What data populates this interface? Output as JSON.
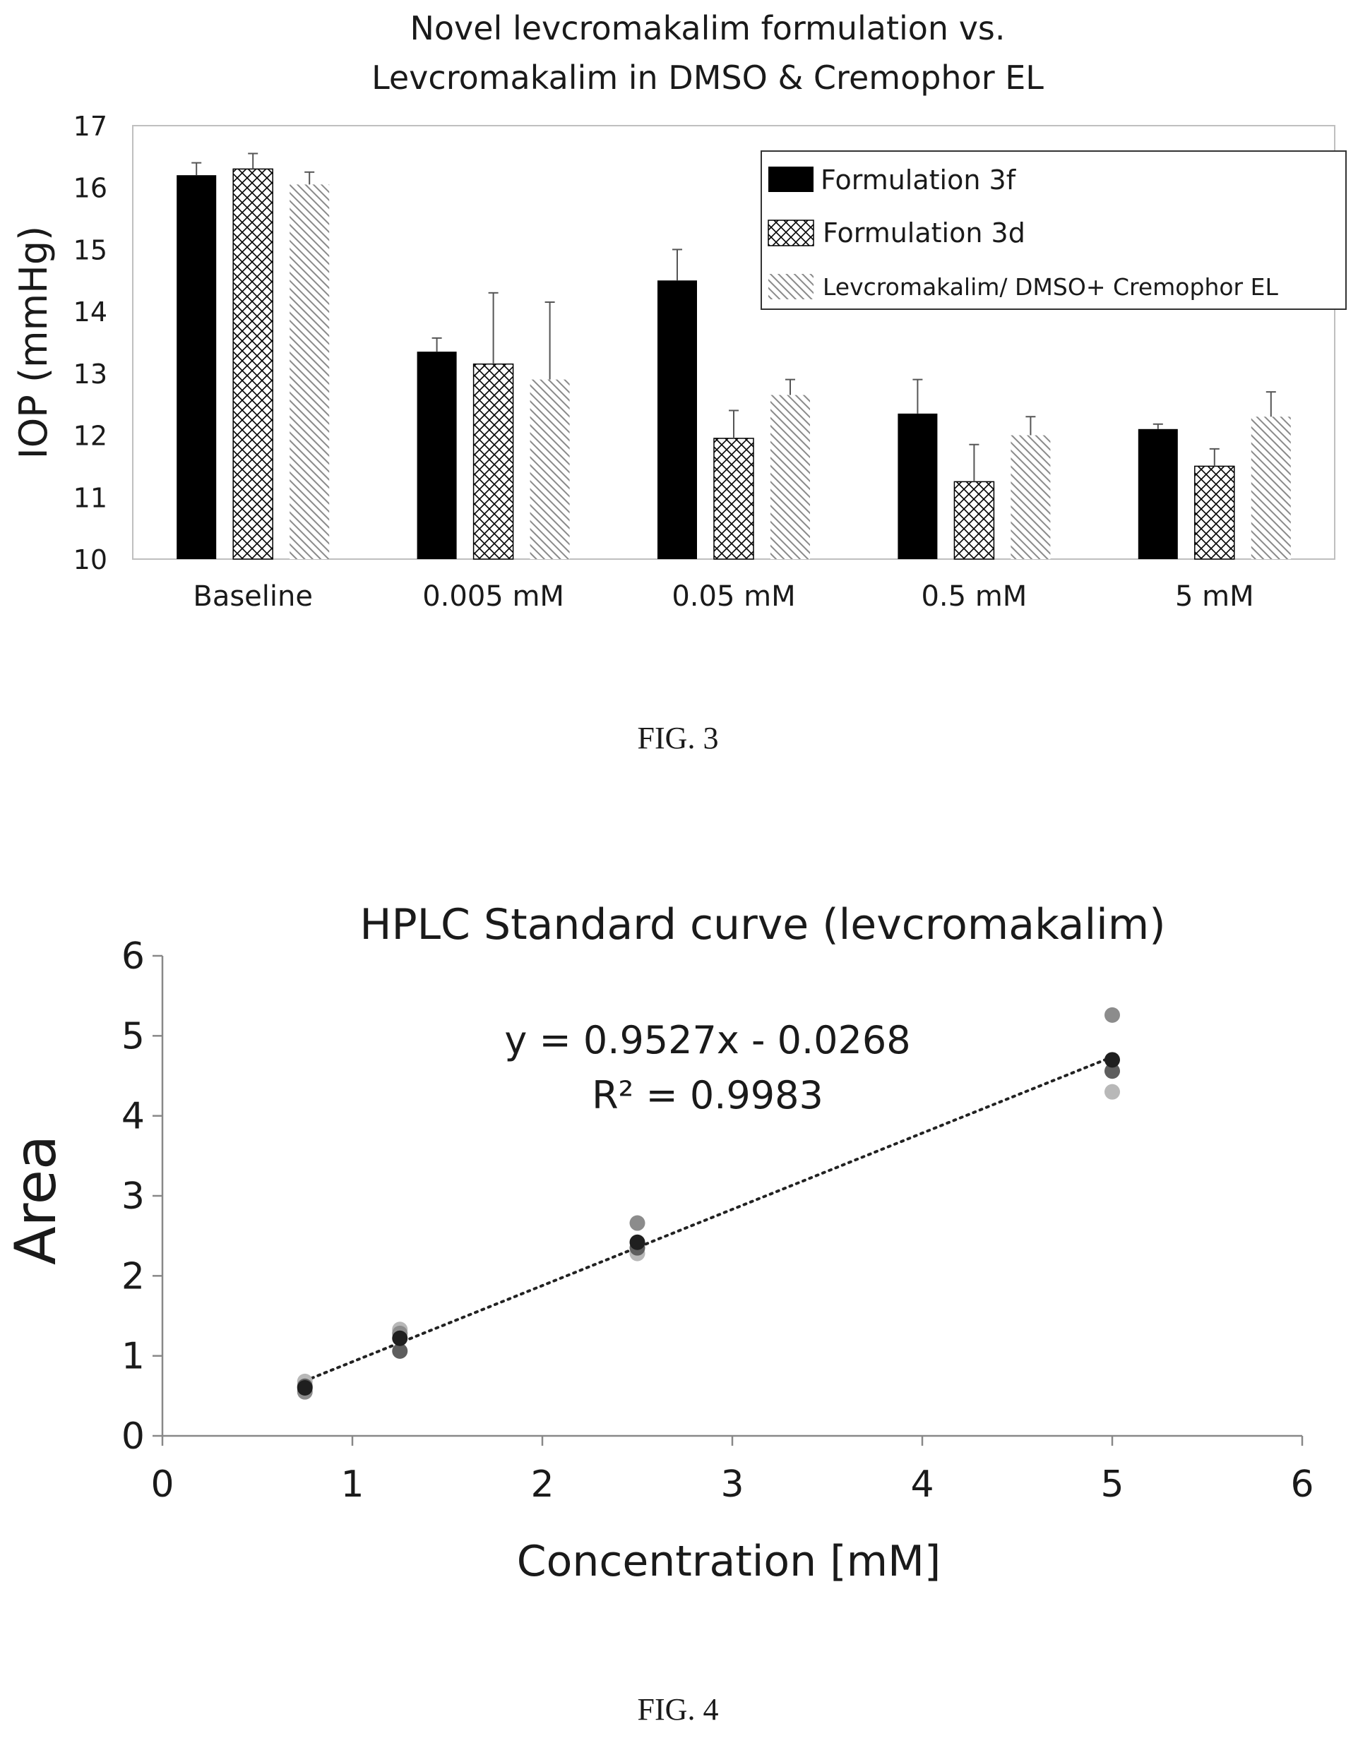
{
  "figures": [
    {
      "caption": "FIG. 3"
    },
    {
      "caption": "FIG. 4"
    }
  ],
  "colors": {
    "bar_3f": "#000000",
    "bar_3d_pattern": "crosshatch",
    "bar_dmso_pattern": "diagonal-hatch",
    "fit_line": "#222222",
    "points": [
      "#b8b8b8",
      "#8c8c8c",
      "#5e5e5e",
      "#1f1f1f"
    ]
  },
  "chart_data": [
    {
      "type": "bar",
      "title_lines": [
        "Novel levcromakalim formulation vs.",
        "Levcromakalim in DMSO & Cremophor EL"
      ],
      "xlabel": "",
      "ylabel": "IOP (mmHg)",
      "ylim": [
        10,
        17
      ],
      "yticks": [
        10,
        11,
        12,
        13,
        14,
        15,
        16,
        17
      ],
      "grid": false,
      "legend_position": "top-right",
      "categories": [
        "Baseline",
        "0.005 mM",
        "0.05 mM",
        "0.5 mM",
        "5 mM"
      ],
      "series": [
        {
          "name": "Formulation 3f",
          "pattern": "solid",
          "values": [
            16.2,
            13.35,
            14.5,
            12.35,
            12.1
          ],
          "errors": [
            0.2,
            0.22,
            0.5,
            0.55,
            0.08
          ]
        },
        {
          "name": "Formulation 3d",
          "pattern": "crosshatch",
          "values": [
            16.3,
            13.15,
            11.95,
            11.25,
            11.5
          ],
          "errors": [
            0.25,
            1.15,
            0.45,
            0.6,
            0.28
          ]
        },
        {
          "name": "Levcromakalim/ DMSO+ Cremophor EL",
          "pattern": "diagonal",
          "values": [
            16.05,
            12.9,
            12.65,
            12.0,
            12.3
          ],
          "errors": [
            0.2,
            1.25,
            0.25,
            0.3,
            0.4
          ]
        }
      ]
    },
    {
      "type": "scatter",
      "title": "HPLC Standard curve (levcromakalim)",
      "xlabel": "Concentration [mM]",
      "ylabel": "Area",
      "xlim": [
        0,
        6
      ],
      "ylim": [
        0,
        6
      ],
      "xticks": [
        0,
        1,
        2,
        3,
        4,
        5,
        6
      ],
      "yticks": [
        0,
        1,
        2,
        3,
        4,
        5,
        6
      ],
      "grid": false,
      "points": [
        {
          "x": 0.75,
          "y": 0.68,
          "shade": 0
        },
        {
          "x": 0.75,
          "y": 0.55,
          "shade": 1
        },
        {
          "x": 0.75,
          "y": 0.62,
          "shade": 2
        },
        {
          "x": 0.75,
          "y": 0.6,
          "shade": 3
        },
        {
          "x": 1.25,
          "y": 1.33,
          "shade": 0
        },
        {
          "x": 1.25,
          "y": 1.28,
          "shade": 1
        },
        {
          "x": 1.25,
          "y": 1.06,
          "shade": 2
        },
        {
          "x": 1.25,
          "y": 1.22,
          "shade": 3
        },
        {
          "x": 2.5,
          "y": 2.28,
          "shade": 0
        },
        {
          "x": 2.5,
          "y": 2.66,
          "shade": 1
        },
        {
          "x": 2.5,
          "y": 2.35,
          "shade": 2
        },
        {
          "x": 2.5,
          "y": 2.42,
          "shade": 3
        },
        {
          "x": 5.0,
          "y": 4.3,
          "shade": 0
        },
        {
          "x": 5.0,
          "y": 5.26,
          "shade": 1
        },
        {
          "x": 5.0,
          "y": 4.56,
          "shade": 2
        },
        {
          "x": 5.0,
          "y": 4.7,
          "shade": 3
        }
      ],
      "trendline": {
        "slope": 0.9527,
        "intercept": -0.0268,
        "x_range": [
          0.75,
          5.0
        ],
        "style": "dotted"
      },
      "annotations": [
        "y = 0.9527x - 0.0268",
        "R² = 0.9983"
      ]
    }
  ]
}
